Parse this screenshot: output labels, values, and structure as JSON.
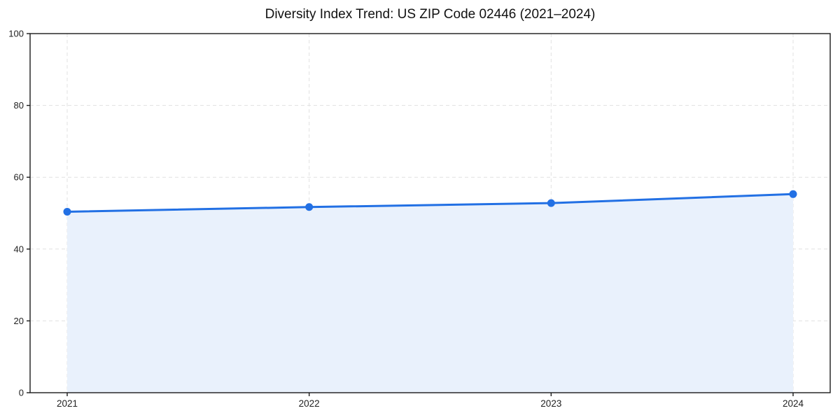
{
  "page": {
    "background": "#ffffff"
  },
  "chart_data": {
    "type": "line",
    "title": "Diversity Index Trend: US ZIP Code 02446 (2021–2024)",
    "categories": [
      "2021",
      "2022",
      "2023",
      "2024"
    ],
    "series": [
      {
        "name": "Diversity Index",
        "values": [
          50.4,
          51.7,
          52.8,
          55.3
        ]
      }
    ],
    "xlabel": "",
    "ylabel": "",
    "ylim": [
      0,
      100
    ],
    "yticks": [
      0,
      20,
      40,
      60,
      80,
      100
    ],
    "grid": true,
    "grid_style": "dashed",
    "legend_position": "none",
    "area_fill": true,
    "marker": "circle",
    "colors": {
      "line": "#2270e4",
      "marker": "#2270e4",
      "area": "#e9f1fc",
      "grid": "#e1e1e1",
      "spine": "#1a1a1a",
      "tick_label": "#222222",
      "title": "#111111"
    }
  }
}
